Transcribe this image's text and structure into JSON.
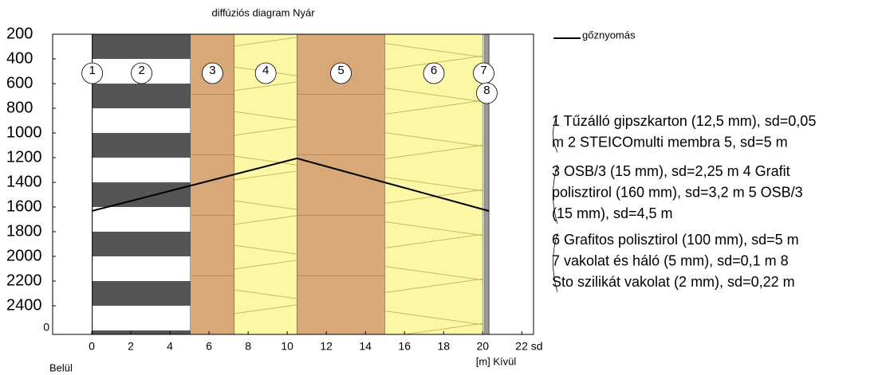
{
  "chart_data": {
    "type": "line",
    "title": "diffúziós diagram Nyár",
    "xlim": [
      -2,
      22.6
    ],
    "ylim": [
      2632,
      200
    ],
    "xticks": [
      0,
      2,
      4,
      6,
      8,
      10,
      12,
      14,
      16,
      18,
      20,
      {
        "value": 22,
        "label": "22 sd"
      }
    ],
    "yticks": [
      200,
      400,
      600,
      800,
      1000,
      1200,
      1400,
      1600,
      1800,
      2000,
      2200,
      2400
    ],
    "y_bottom_label": "0",
    "x_unit_label": "[m] Kívül",
    "inside_label": "Belül",
    "grid": false,
    "legend": "top-right",
    "layers": [
      {
        "number": "1",
        "sd": 0.05,
        "color": "#222222",
        "pattern": "none"
      },
      {
        "number": "2",
        "sd": 5,
        "color": "#555555",
        "pattern": "stripes"
      },
      {
        "number": "3",
        "sd": 2.25,
        "color": "#d9a878",
        "pattern": "lines"
      },
      {
        "number": "4",
        "sd": 3.2,
        "color": "#fbf7a4",
        "pattern": "cross"
      },
      {
        "number": "5",
        "sd": 4.5,
        "color": "#d9a878",
        "pattern": "lines"
      },
      {
        "number": "6",
        "sd": 5,
        "color": "#fbf7a4",
        "pattern": "cross"
      },
      {
        "number": "7",
        "sd": 0.1,
        "color": "#dddddd",
        "pattern": "none"
      },
      {
        "number": "8",
        "sd": 0.22,
        "color": "#999999",
        "pattern": "none"
      }
    ],
    "series": [
      {
        "name": "gőznyomás",
        "color": "#000000",
        "x": [
          0,
          10.5,
          20.32
        ],
        "values": [
          1632,
          1206,
          1632
        ]
      }
    ],
    "notes": [
      [
        "1 Tűzálló gipszkarton (12,5 mm), sd=0,05",
        "m 2 STEICOmulti membra 5, sd=5 m"
      ],
      [
        "3 OSB/3 (15 mm), sd=2,25 m 4 Grafit",
        "polisztirol (160 mm), sd=3,2 m 5 OSB/3",
        "(15 mm), sd=4,5 m"
      ],
      [
        "6 Grafitos polisztirol (100 mm), sd=5 m",
        "7 vakolat és háló (5 mm), sd=0,1 m 8",
        "Sto szilikát vakolat (2 mm), sd=0,22 m"
      ]
    ]
  }
}
